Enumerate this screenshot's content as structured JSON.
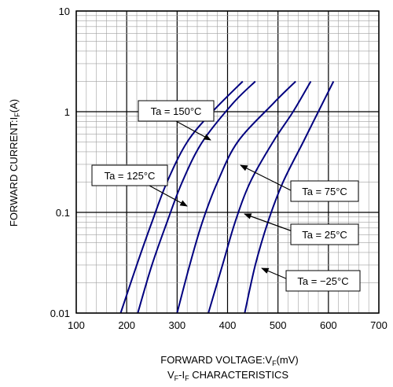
{
  "chart_data": {
    "type": "line",
    "title": "",
    "caption": {
      "main": "V",
      "sub1": "F",
      "mid": "-I",
      "sub2": "F",
      "rest": " CHARACTERISTICS"
    },
    "xlabel": {
      "main": "FORWARD VOLTAGE:V",
      "sub": "F",
      "rest": "(mV)"
    },
    "ylabel": {
      "main": "FORWARD CURRENT:I",
      "sub": "F",
      "rest": "(A)"
    },
    "x_scale": "linear",
    "y_scale": "log",
    "xlim": [
      100,
      700
    ],
    "ylim": [
      0.01,
      10
    ],
    "x_ticks": [
      "100",
      "200",
      "300",
      "400",
      "500",
      "600",
      "700"
    ],
    "y_ticks": [
      "0.01",
      "0.1",
      "1",
      "10"
    ],
    "grid": true,
    "line_color": "#00007f",
    "series": [
      {
        "name": "Ta = 150°C",
        "points": [
          [
            188,
            0.01
          ],
          [
            220,
            0.03
          ],
          [
            250,
            0.08
          ],
          [
            280,
            0.2
          ],
          [
            320,
            0.5
          ],
          [
            370,
            1.0
          ],
          [
            430,
            2.0
          ]
        ]
      },
      {
        "name": "Ta = 125°C",
        "points": [
          [
            222,
            0.01
          ],
          [
            250,
            0.03
          ],
          [
            280,
            0.08
          ],
          [
            310,
            0.2
          ],
          [
            350,
            0.5
          ],
          [
            410,
            1.2
          ],
          [
            455,
            2.0
          ]
        ]
      },
      {
        "name": "Ta = 75°C",
        "points": [
          [
            300,
            0.01
          ],
          [
            325,
            0.03
          ],
          [
            350,
            0.08
          ],
          [
            380,
            0.2
          ],
          [
            420,
            0.5
          ],
          [
            490,
            1.2
          ],
          [
            535,
            2.0
          ]
        ]
      },
      {
        "name": "Ta = 25°C",
        "points": [
          [
            362,
            0.01
          ],
          [
            390,
            0.03
          ],
          [
            415,
            0.08
          ],
          [
            445,
            0.2
          ],
          [
            490,
            0.5
          ],
          [
            530,
            1.0
          ],
          [
            565,
            2.0
          ]
        ]
      },
      {
        "name": "Ta = −25°C",
        "points": [
          [
            434,
            0.01
          ],
          [
            455,
            0.03
          ],
          [
            480,
            0.08
          ],
          [
            510,
            0.2
          ],
          [
            550,
            0.5
          ],
          [
            580,
            1.0
          ],
          [
            610,
            2.0
          ]
        ]
      }
    ],
    "annotations": [
      {
        "label": "Ta = 150°C",
        "series": 0
      },
      {
        "label": "Ta = 125°C",
        "series": 1
      },
      {
        "label": "Ta = 75°C",
        "series": 2
      },
      {
        "label": "Ta = 25°C",
        "series": 3
      },
      {
        "label": "Ta = −25°C",
        "series": 4
      }
    ]
  }
}
